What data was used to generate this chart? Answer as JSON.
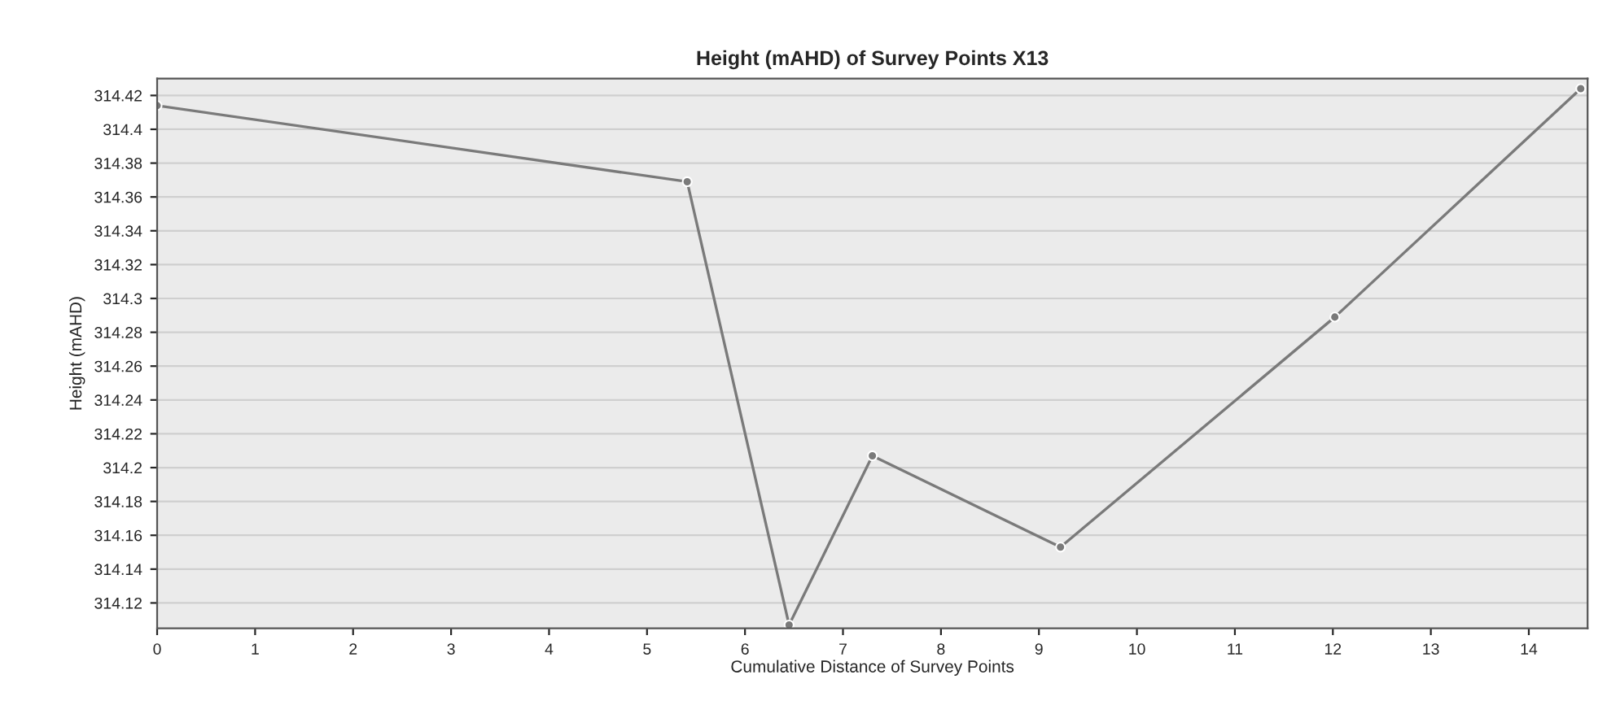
{
  "chart_data": {
    "type": "line",
    "title": "Height (mAHD) of Survey Points X13",
    "xlabel": "Cumulative Distance of Survey Points",
    "ylabel": "Height (mAHD)",
    "x": [
      0,
      5.41,
      6.45,
      7.3,
      9.22,
      12.02,
      14.53
    ],
    "series": [
      {
        "color": "#7a7a7a",
        "values": [
          314.414,
          314.369,
          314.107,
          314.207,
          314.153,
          314.289,
          314.424
        ]
      }
    ],
    "xlim": [
      0,
      14.6
    ],
    "xticks": [
      0,
      1,
      2,
      3,
      4,
      5,
      6,
      7,
      8,
      9,
      10,
      11,
      12,
      13,
      14
    ],
    "ylim": [
      314.105,
      314.43
    ],
    "yticks": [
      {
        "value": 314.12,
        "label": "314.12"
      },
      {
        "value": 314.14,
        "label": "314.14"
      },
      {
        "value": 314.16,
        "label": "314.16"
      },
      {
        "value": 314.18,
        "label": "314.18"
      },
      {
        "value": 314.2,
        "label": "314.2"
      },
      {
        "value": 314.22,
        "label": "314.22"
      },
      {
        "value": 314.24,
        "label": "314.24"
      },
      {
        "value": 314.26,
        "label": "314.26"
      },
      {
        "value": 314.28,
        "label": "314.28"
      },
      {
        "value": 314.3,
        "label": "314.3"
      },
      {
        "value": 314.32,
        "label": "314.32"
      },
      {
        "value": 314.34,
        "label": "314.34"
      },
      {
        "value": 314.36,
        "label": "314.36"
      },
      {
        "value": 314.38,
        "label": "314.38"
      },
      {
        "value": 314.4,
        "label": "314.4"
      },
      {
        "value": 314.42,
        "label": "314.42"
      }
    ],
    "grid": "y",
    "marker": "circle",
    "line_style": "solid"
  }
}
